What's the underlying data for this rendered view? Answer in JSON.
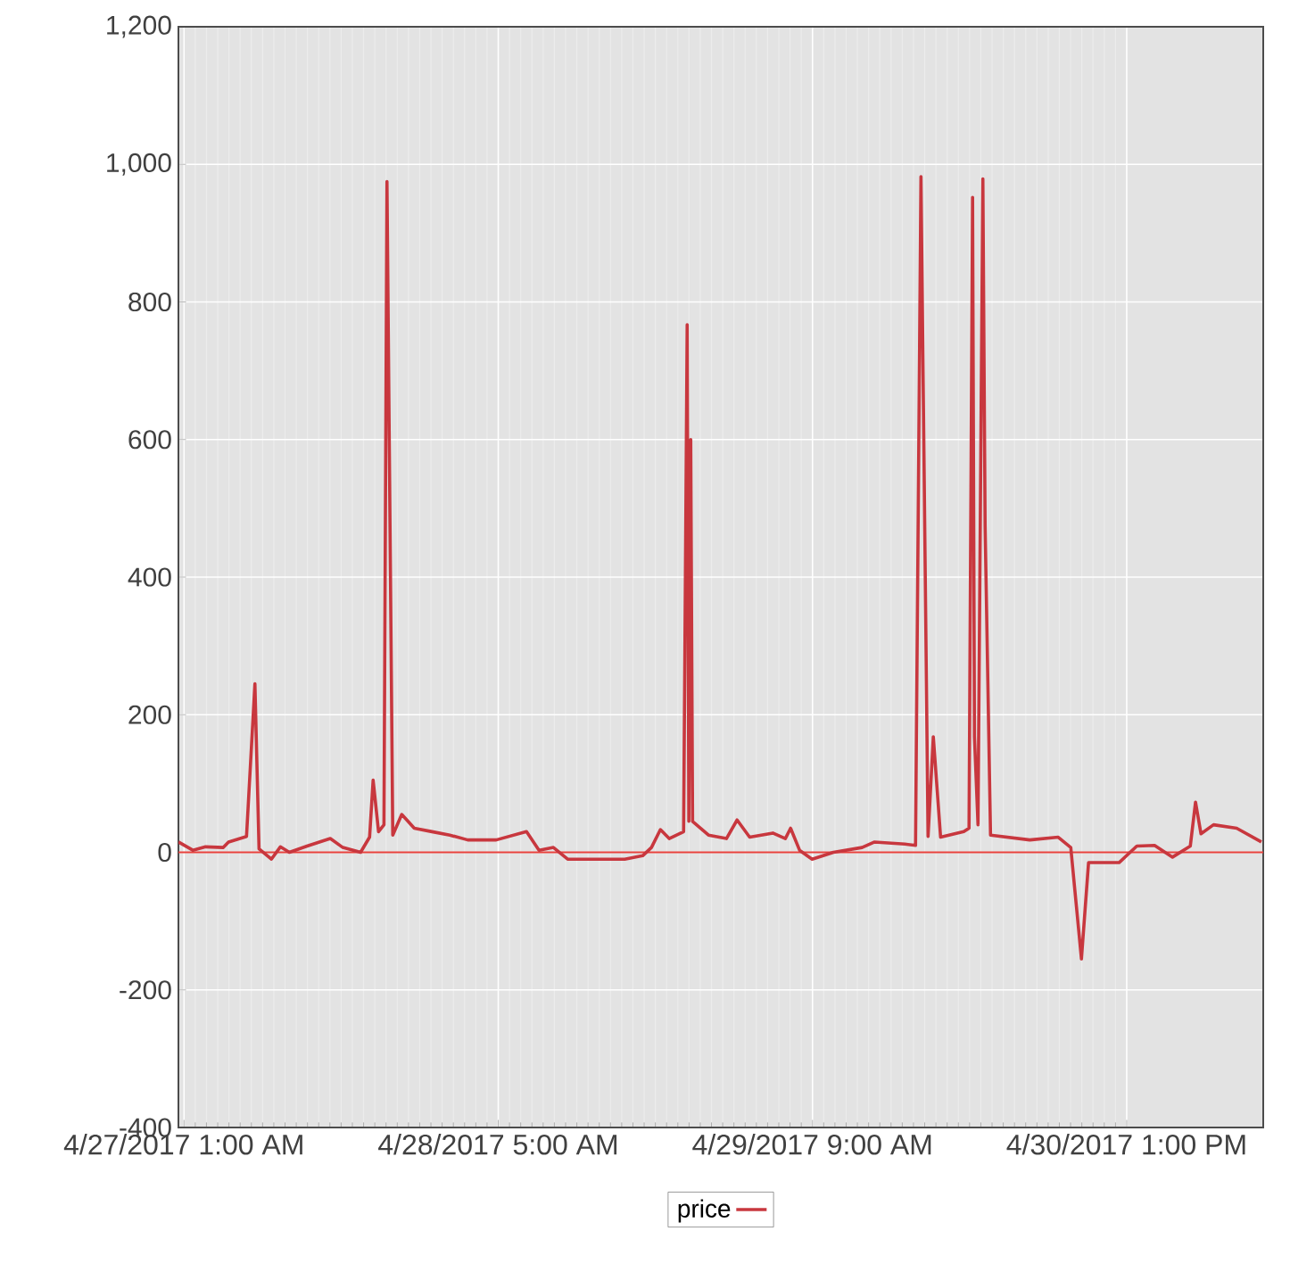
{
  "chart_data": {
    "type": "line",
    "x": [
      "2017-04-27T00:30",
      "2017-04-27T01:47",
      "2017-04-27T02:55",
      "2017-04-27T04:30",
      "2017-04-27T04:58",
      "2017-04-27T06:34",
      "2017-04-27T07:19",
      "2017-04-27T07:41",
      "2017-04-27T08:47",
      "2017-04-27T09:35",
      "2017-04-27T10:23",
      "2017-04-27T11:58",
      "2017-04-27T14:02",
      "2017-04-27T15:09",
      "2017-04-27T16:44",
      "2017-04-27T17:32",
      "2017-04-27T17:51",
      "2017-04-27T18:20",
      "2017-04-27T18:49",
      "2017-04-27T19:05",
      "2017-04-27T19:36",
      "2017-04-27T20:24",
      "2017-04-27T21:31",
      "2017-04-27T23:06",
      "2017-04-28T00:41",
      "2017-04-28T02:17",
      "2017-04-28T04:49",
      "2017-04-28T07:31",
      "2017-04-28T08:38",
      "2017-04-28T09:55",
      "2017-04-28T11:11",
      "2017-04-28T16:16",
      "2017-04-28T17:52",
      "2017-04-28T18:39",
      "2017-04-28T19:27",
      "2017-04-28T20:14",
      "2017-04-28T21:31",
      "2017-04-28T21:50",
      "2017-04-28T21:59",
      "2017-04-28T22:09",
      "2017-04-28T22:19",
      "2017-04-28T23:44",
      "2017-04-29T01:20",
      "2017-04-29T02:17",
      "2017-04-29T03:24",
      "2017-04-29T05:28",
      "2017-04-29T06:35",
      "2017-04-29T07:03",
      "2017-04-29T07:51",
      "2017-04-29T08:58",
      "2017-04-29T10:52",
      "2017-04-29T13:25",
      "2017-04-29T14:32",
      "2017-04-29T17:14",
      "2017-04-29T18:11",
      "2017-04-29T18:40",
      "2017-04-29T19:18",
      "2017-04-29T19:46",
      "2017-04-29T20:25",
      "2017-04-29T22:29",
      "2017-04-29T22:57",
      "2017-04-29T23:16",
      "2017-04-29T23:26",
      "2017-04-29T23:45",
      "2017-04-30T00:11",
      "2017-04-30T00:23",
      "2017-04-30T00:52",
      "2017-04-30T04:22",
      "2017-04-30T06:54",
      "2017-04-30T08:01",
      "2017-04-30T08:58",
      "2017-04-30T09:36",
      "2017-04-30T12:19",
      "2017-04-30T13:54",
      "2017-04-30T15:29",
      "2017-04-30T17:05",
      "2017-04-30T18:40",
      "2017-04-30T19:08",
      "2017-04-30T19:37",
      "2017-04-30T20:44",
      "2017-04-30T22:48",
      "2017-05-01T01:00"
    ],
    "series": [
      {
        "name": "price",
        "color": "#c8373e",
        "values": [
          15,
          3,
          8,
          7,
          15,
          23,
          245,
          5,
          -10,
          8,
          0,
          9,
          20,
          7,
          0,
          22,
          105,
          30,
          40,
          975,
          25,
          55,
          35,
          30,
          25,
          18,
          18,
          30,
          3,
          7,
          -10,
          -10,
          -5,
          7,
          33,
          20,
          30,
          767,
          45,
          600,
          45,
          25,
          20,
          47,
          22,
          28,
          20,
          35,
          3,
          -10,
          0,
          7,
          15,
          12,
          10,
          982,
          23,
          168,
          22,
          30,
          35,
          952,
          168,
          40,
          979,
          474,
          25,
          18,
          22,
          7,
          -155,
          -15,
          -15,
          9,
          10,
          -7,
          9,
          73,
          27,
          40,
          35,
          15
        ]
      }
    ],
    "xlim": [
      "2017-04-27T00:30",
      "2017-05-01T01:10"
    ],
    "xticks": [
      {
        "value": "2017-04-27T01:00",
        "label": "4/27/2017 1:00 AM"
      },
      {
        "value": "2017-04-28T05:00",
        "label": "4/28/2017 5:00 AM"
      },
      {
        "value": "2017-04-29T09:00",
        "label": "4/29/2017 9:00 AM"
      },
      {
        "value": "2017-04-30T13:00",
        "label": "4/30/2017 1:00 PM"
      }
    ],
    "ylim": [
      -400,
      1200
    ],
    "yticks": [
      -400,
      -200,
      0,
      200,
      400,
      600,
      800,
      {
        "value": 1000,
        "label": "1,000"
      },
      {
        "value": 1200,
        "label": "1,200"
      }
    ],
    "ref_lines": [
      {
        "axis": "y",
        "value": 0,
        "color": "#e8413c"
      }
    ],
    "grid": true,
    "legend": "bottom",
    "marker": "none",
    "line_style": "solid"
  }
}
